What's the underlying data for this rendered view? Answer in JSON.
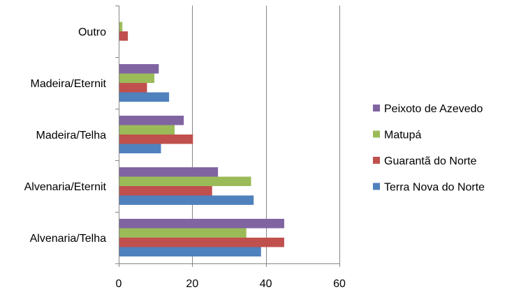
{
  "chart_data": {
    "type": "bar",
    "orientation": "horizontal",
    "categories": [
      "Alvenaria/Telha",
      "Alvenaria/Eternit",
      "Madeira/Telha",
      "Madeira/Eternit",
      "Outro"
    ],
    "series": [
      {
        "name": "Terra Nova do Norte",
        "color": "#4F81BD",
        "values": [
          38.5,
          36.5,
          11.3,
          13.5,
          0
        ]
      },
      {
        "name": "Guarantã do Norte",
        "color": "#C0504D",
        "values": [
          44.8,
          25.2,
          20.0,
          7.5,
          2.3
        ]
      },
      {
        "name": "Matupá",
        "color": "#9BBB59",
        "values": [
          34.5,
          35.8,
          15.0,
          9.5,
          0.8
        ]
      },
      {
        "name": "Peixoto de Azevedo",
        "color": "#8064A2",
        "values": [
          44.8,
          26.8,
          17.5,
          10.7,
          0
        ]
      }
    ],
    "xlim": [
      0,
      60
    ],
    "xticks": [
      "0",
      "20",
      "40",
      "60"
    ],
    "grid": "vertical",
    "legend_position": "right"
  }
}
